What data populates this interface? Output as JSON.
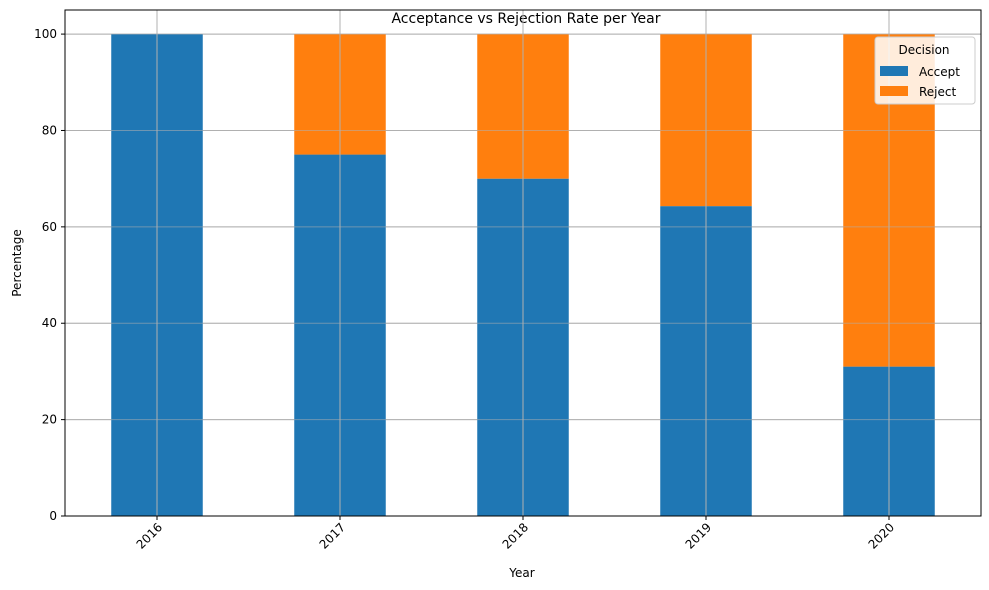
{
  "chart_data": {
    "type": "bar",
    "stacked": true,
    "title": "Acceptance vs Rejection Rate per Year",
    "xlabel": "Year",
    "ylabel": "Percentage",
    "categories": [
      "2016",
      "2017",
      "2018",
      "2019",
      "2020"
    ],
    "series": [
      {
        "name": "Accept",
        "values": [
          100,
          75,
          70,
          64.3,
          31
        ],
        "color": "#1f77b4"
      },
      {
        "name": "Reject",
        "values": [
          0,
          25,
          30,
          35.7,
          69
        ],
        "color": "#ff7f0e"
      }
    ],
    "ylim": [
      0,
      105
    ],
    "yticks": [
      0,
      20,
      40,
      60,
      80,
      100
    ],
    "grid": true,
    "legend": {
      "title": "Decision",
      "placement": "top-right"
    }
  }
}
